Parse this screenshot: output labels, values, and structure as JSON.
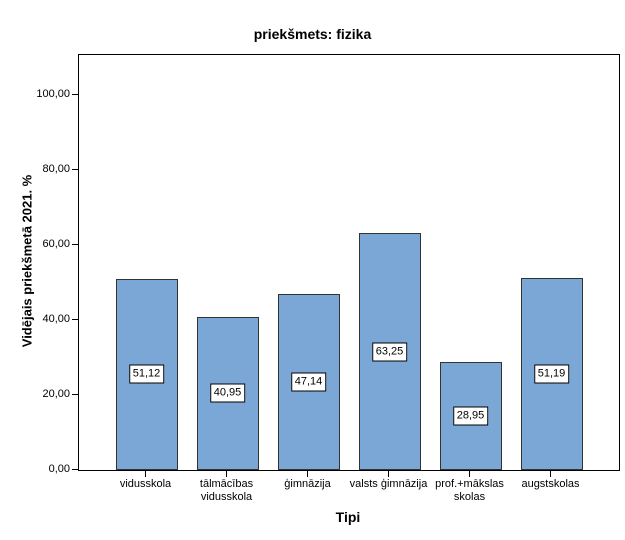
{
  "chart_data": {
    "type": "bar",
    "title": "priekšmets: fizika",
    "xlabel": "Tipi",
    "ylabel": "Vidējais priekšmetā 2021. %",
    "categories": [
      "vidusskola",
      "tālmācības vidusskola",
      "ģimnāzija",
      "valsts ģimnāzija",
      "prof.+mākslas skolas",
      "augstskolas"
    ],
    "category_label_lines": [
      [
        "vidusskola"
      ],
      [
        "tālmācības",
        "vidusskola"
      ],
      [
        "ģimnāzija"
      ],
      [
        "valsts ģimnāzija"
      ],
      [
        "prof.+mākslas",
        "skolas"
      ],
      [
        "augstskolas"
      ]
    ],
    "values": [
      51.12,
      40.95,
      47.14,
      63.25,
      28.95,
      51.19
    ],
    "value_labels": [
      "51,12",
      "40,95",
      "47,14",
      "63,25",
      "28,95",
      "51,19"
    ],
    "y_tick_values": [
      0,
      20,
      40,
      60,
      80,
      100
    ],
    "y_tick_labels": [
      "0,00",
      "20,00",
      "40,00",
      "60,00",
      "80,00",
      "100,00"
    ],
    "ylim": [
      0,
      110.9
    ],
    "grid": false,
    "legend_position": "none",
    "bar_color": "#7AA7D5",
    "bar_border_color": "#333333",
    "frame_color": "#000000",
    "text_color": "#000000"
  }
}
